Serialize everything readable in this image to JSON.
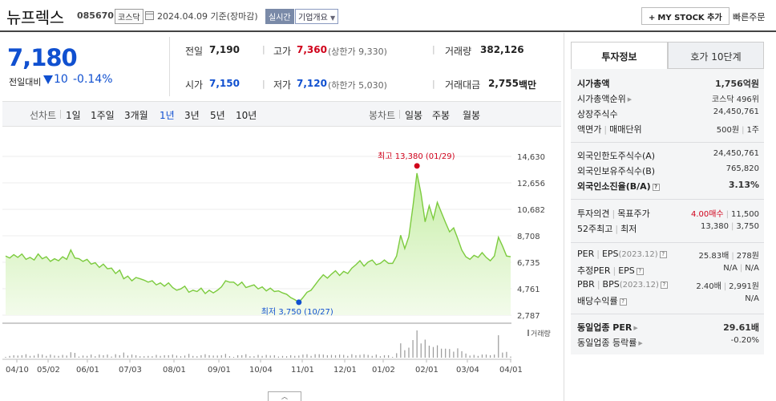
{
  "header": {
    "company_name": "뉴프렉스",
    "code": "085670",
    "market": "코스닥",
    "date_text": "2024.04.09 기준(장마감)",
    "realtime_badge": "실시간",
    "corp_info_label": "기업개요",
    "mystock_label": "MY STOCK 추가",
    "quick_order_label": "빠른주문"
  },
  "price": {
    "current": "7,180",
    "change_label": "전일대비",
    "change_value": "10",
    "change_pct": "-0.14%",
    "prev_close_label": "전일",
    "prev_close": "7,190",
    "high_label": "고가",
    "high": "7,360",
    "upper_limit": "(상한가 9,330)",
    "volume_label": "거래량",
    "volume": "382,126",
    "open_label": "시가",
    "open": "7,150",
    "low_label": "저가",
    "low": "7,120",
    "lower_limit": "(하한가 5,030)",
    "amount_label": "거래대금",
    "amount": "2,755",
    "amount_unit": "백만"
  },
  "period_bar": {
    "line_chart_label": "선차트",
    "periods": [
      "1일",
      "1주일",
      "3개월",
      "1년",
      "3년",
      "5년",
      "10년"
    ],
    "active_period": "1년",
    "candle_chart_label": "봉차트",
    "candles": [
      "일봉",
      "주봉",
      "월봉"
    ]
  },
  "chart_data": {
    "type": "area",
    "y_ticks": [
      "14,630",
      "12,656",
      "10,682",
      "8,708",
      "6,735",
      "4,761",
      "2,787"
    ],
    "x_ticks": [
      "04/10",
      "05/02",
      "06/01",
      "07/03",
      "08/01",
      "09/01",
      "10/04",
      "11/01",
      "12/01",
      "01/02",
      "02/01",
      "03/04",
      "04/01"
    ],
    "ylim": [
      2787,
      14630
    ],
    "high_annotation": "최고 13,380 (01/29)",
    "low_annotation": "최저 3,750 (10/27)",
    "volume_label": "거래량",
    "series": [
      {
        "values": [
          7200,
          7050,
          7300,
          7100,
          7350,
          6950,
          7100,
          6900,
          7350,
          7000,
          7150,
          6800,
          7000,
          6850,
          7150,
          6950,
          7650,
          7050,
          7000,
          6800,
          6950,
          6600,
          6700,
          6350,
          6600,
          6250,
          6300,
          5900,
          6150,
          5500,
          5700,
          5350,
          5600,
          5500,
          5400,
          5250,
          5350,
          5050,
          5200,
          4950,
          5200,
          4850,
          4650,
          4750,
          4950,
          4500,
          4650,
          4550,
          4800,
          4400,
          4650,
          4450,
          4650,
          4900,
          5350,
          5250,
          5250,
          5000,
          5250,
          4850,
          4950,
          5050,
          4750,
          4900,
          4600,
          4800,
          4550,
          4600,
          4450,
          4350,
          4100,
          3950,
          3750,
          4100,
          4500,
          4650,
          5050,
          5450,
          5800,
          5550,
          5850,
          6100,
          5750,
          6050,
          5900,
          6300,
          6550,
          6850,
          6450,
          6750,
          6900,
          6550,
          6650,
          6900,
          6650,
          6650,
          7200,
          8750,
          7750,
          8650,
          10900,
          13380,
          11850,
          9750,
          10950,
          9950,
          11200,
          10450,
          9700,
          9000,
          9300,
          8500,
          7650,
          7150,
          6950,
          7250,
          7100,
          7450,
          7100,
          6850,
          7200,
          8600,
          7950,
          7200,
          7150
        ]
      }
    ]
  },
  "right_panel": {
    "tab_invest": "투자정보",
    "tab_hoga": "호가 10단계",
    "market_cap_label": "시가총액",
    "market_cap": "1,756억원",
    "market_cap_rank_label": "시가총액순위",
    "market_cap_rank": "코스닥 496위",
    "listed_shares_label": "상장주식수",
    "listed_shares": "24,450,761",
    "face_value_label": "액면가",
    "trade_unit_label": "매매단위",
    "face_value": "500원",
    "trade_unit": "1주",
    "foreign_limit_label": "외국인한도주식수(A)",
    "foreign_limit": "24,450,761",
    "foreign_hold_label": "외국인보유주식수(B)",
    "foreign_hold": "765,820",
    "foreign_rate_label": "외국인소진율(B/A)",
    "foreign_rate": "3.13%",
    "opinion_label": "투자의견",
    "target_label": "목표주가",
    "opinion": "4.00매수",
    "target": "11,500",
    "w52_label_a": "52주최고",
    "w52_label_b": "최저",
    "w52_high": "13,380",
    "w52_low": "3,750",
    "per_label": "PER",
    "eps_label": "EPS",
    "eps_year": "(2023.12)",
    "per": "25.83배",
    "eps": "278원",
    "est_per_label": "추정PER",
    "est_eps_label": "EPS",
    "est_per": "N/A",
    "est_eps": "N/A",
    "pbr_label": "PBR",
    "bps_label": "BPS",
    "bps_year": "(2023.12)",
    "pbr": "2.40배",
    "bps": "2,991원",
    "dividend_label": "배당수익률",
    "dividend": "N/A",
    "industry_per_label": "동일업종 PER",
    "industry_per": "29.61배",
    "industry_rate_label": "동일업종 등락률",
    "industry_rate": "-0.20%"
  }
}
